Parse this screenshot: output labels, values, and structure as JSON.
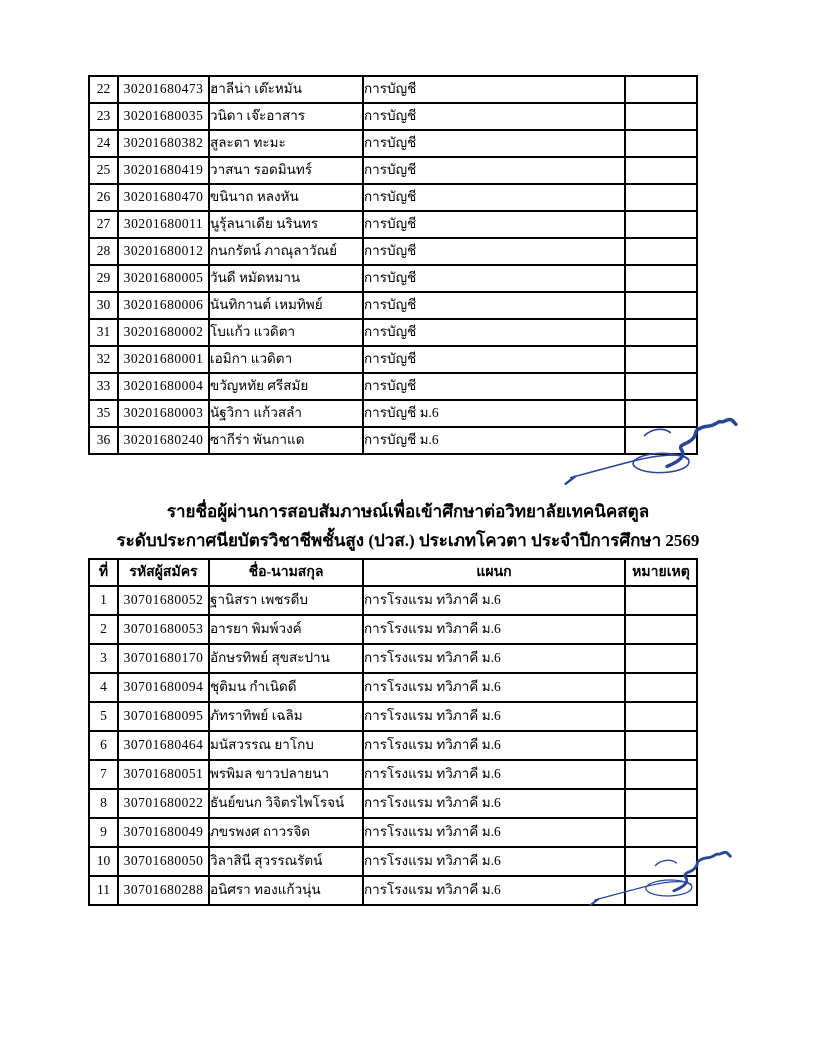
{
  "page": {
    "background": "#ffffff",
    "text_color": "#000000",
    "border_color": "#000000",
    "signature_ink_color": "#28459a"
  },
  "table1": {
    "description": "continuation-of-accounting-quota-list",
    "rows": [
      {
        "no": "22",
        "code": "30201680473",
        "name": "ฮาลีน่า เต๊ะหมัน",
        "dept": "การบัญชี",
        "remark": ""
      },
      {
        "no": "23",
        "code": "30201680035",
        "name": "วนิดา เจ๊ะอาสาร",
        "dept": "การบัญชี",
        "remark": ""
      },
      {
        "no": "24",
        "code": "30201680382",
        "name": "สูละตา ทะมะ",
        "dept": "การบัญชี",
        "remark": ""
      },
      {
        "no": "25",
        "code": "30201680419",
        "name": "วาสนา รอดมินทร์",
        "dept": "การบัญชี",
        "remark": ""
      },
      {
        "no": "26",
        "code": "30201680470",
        "name": "ขนินาถ หลงหัน",
        "dept": "การบัญชี",
        "remark": ""
      },
      {
        "no": "27",
        "code": "30201680011",
        "name": "นูรุ้ลนาเดีย นรินทร",
        "dept": "การบัญชี",
        "remark": ""
      },
      {
        "no": "28",
        "code": "30201680012",
        "name": "กนกรัตน์ ภาณุลาวัณย์",
        "dept": "การบัญชี",
        "remark": ""
      },
      {
        "no": "29",
        "code": "30201680005",
        "name": "วันดี หมัดหมาน",
        "dept": "การบัญชี",
        "remark": ""
      },
      {
        "no": "30",
        "code": "30201680006",
        "name": "นันทิกานต์ เหมทิพย์",
        "dept": "การบัญชี",
        "remark": ""
      },
      {
        "no": "31",
        "code": "30201680002",
        "name": "โบแก้ว แวดิตา",
        "dept": "การบัญชี",
        "remark": ""
      },
      {
        "no": "32",
        "code": "30201680001",
        "name": "เอมิกา แวดิตา",
        "dept": "การบัญชี",
        "remark": ""
      },
      {
        "no": "33",
        "code": "30201680004",
        "name": "ขวัญหทัย ศรีสมัย",
        "dept": "การบัญชี",
        "remark": ""
      },
      {
        "no": "35",
        "code": "30201680003",
        "name": "นัฐวิกา แก้วสลำ",
        "dept": "การบัญชี ม.6",
        "remark": ""
      },
      {
        "no": "36",
        "code": "30201680240",
        "name": "ซากีร่า พันกาแด",
        "dept": "การบัญชี ม.6",
        "remark": ""
      }
    ]
  },
  "section2": {
    "title_line1": "รายชื่อผู้ผ่านการสอบสัมภาษณ์เพื่อเข้าศึกษาต่อวิทยาลัยเทคนิคสตูล",
    "title_line2": "ระดับประกาศนียบัตรวิชาชีพชั้นสูง (ปวส.) ประเภทโควตา ประจำปีการศึกษา 2569",
    "headers": {
      "no": "ที่",
      "code": "รหัสผู้สมัคร",
      "name": "ชื่อ-นามสกุล",
      "dept": "แผนก",
      "remark": "หมายเหตุ"
    },
    "rows": [
      {
        "no": "1",
        "code": "30701680052",
        "name": "ฐานิสรา เพชรดีบ",
        "dept": "การโรงแรม ทวิภาคี ม.6",
        "remark": ""
      },
      {
        "no": "2",
        "code": "30701680053",
        "name": "อารยา พิมพ์วงค์",
        "dept": "การโรงแรม ทวิภาคี ม.6",
        "remark": ""
      },
      {
        "no": "3",
        "code": "30701680170",
        "name": "อักษรทิพย์ สุขสะปาน",
        "dept": "การโรงแรม ทวิภาคี ม.6",
        "remark": ""
      },
      {
        "no": "4",
        "code": "30701680094",
        "name": "ชุติมน กำเนิดดี",
        "dept": "การโรงแรม ทวิภาคี ม.6",
        "remark": ""
      },
      {
        "no": "5",
        "code": "30701680095",
        "name": "ภัทราทิพย์ เฉลิม",
        "dept": "การโรงแรม ทวิภาคี ม.6",
        "remark": ""
      },
      {
        "no": "6",
        "code": "30701680464",
        "name": "มนัสวรรณ ยาโกบ",
        "dept": "การโรงแรม ทวิภาคี ม.6",
        "remark": ""
      },
      {
        "no": "7",
        "code": "30701680051",
        "name": "พรพิมล ขาวปลายนา",
        "dept": "การโรงแรม ทวิภาคี ม.6",
        "remark": ""
      },
      {
        "no": "8",
        "code": "30701680022",
        "name": "ธันย์ขนก วิจิตรไพโรจน์",
        "dept": "การโรงแรม ทวิภาคี ม.6",
        "remark": ""
      },
      {
        "no": "9",
        "code": "30701680049",
        "name": "ภขรพงศ ถาวรจิด",
        "dept": "การโรงแรม ทวิภาคี ม.6",
        "remark": ""
      },
      {
        "no": "10",
        "code": "30701680050",
        "name": "วิลาสินี สุวรรณรัตน์",
        "dept": "การโรงแรม ทวิภาคี ม.6",
        "remark": ""
      },
      {
        "no": "11",
        "code": "30701680288",
        "name": "อนิศรา ทองแก้วนุ่น",
        "dept": "การโรงแรม ทวิภาคี ม.6",
        "remark": ""
      }
    ]
  }
}
